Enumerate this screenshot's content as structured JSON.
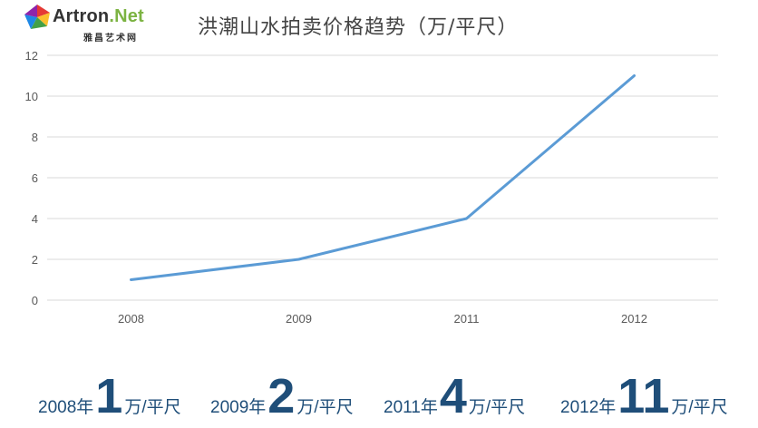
{
  "logo": {
    "name_main": "Artron",
    "name_accent": ".Net",
    "subtitle": "雅昌艺术网"
  },
  "chart_data": {
    "type": "line",
    "title": "洪潮山水拍卖价格趋势（万/平尺）",
    "categories": [
      "2008",
      "2009",
      "2011",
      "2012"
    ],
    "series": [
      {
        "values": [
          1,
          2,
          4,
          11
        ],
        "color": "#5b9bd5"
      }
    ],
    "ylim": [
      0,
      12
    ],
    "yticks": [
      0,
      2,
      4,
      6,
      8,
      10,
      12
    ],
    "grid": true,
    "legend": "none"
  },
  "summary": [
    {
      "year": "2008年",
      "value": "1",
      "unit": "万/平尺"
    },
    {
      "year": "2009年",
      "value": "2",
      "unit": "万/平尺"
    },
    {
      "year": "2011年",
      "value": "4",
      "unit": "万/平尺"
    },
    {
      "year": "2012年",
      "value": "11",
      "unit": "万/平尺"
    }
  ],
  "colors": {
    "summary_text": "#1f4e79",
    "line": "#5b9bd5",
    "grid": "#d9d9d9"
  }
}
